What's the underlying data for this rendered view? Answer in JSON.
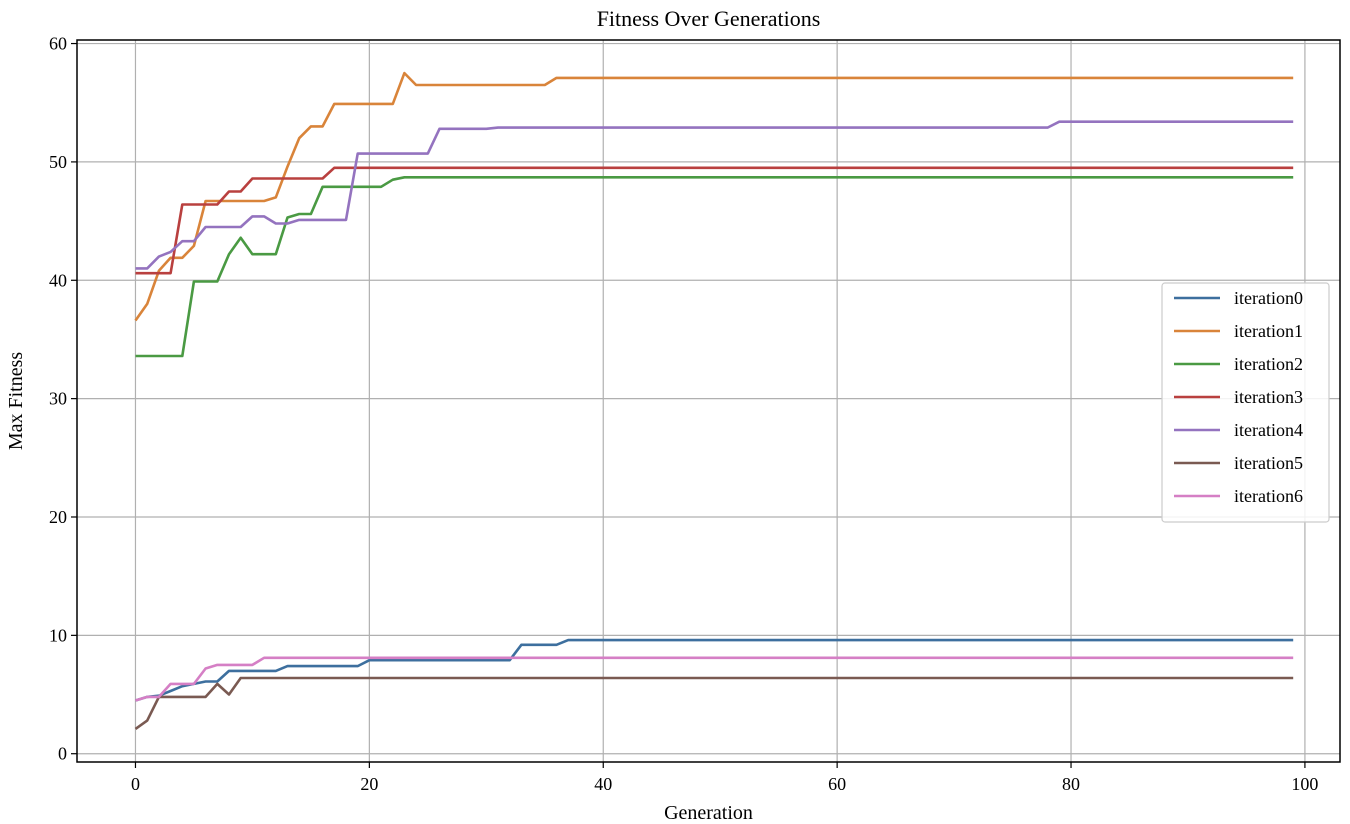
{
  "chart_data": {
    "type": "line",
    "title": "Fitness Over Generations",
    "xlabel": "Generation",
    "ylabel": "Max Fitness",
    "xlim": [
      -5,
      103
    ],
    "ylim": [
      -0.7,
      60.3
    ],
    "xticks": [
      0,
      20,
      40,
      60,
      80,
      100
    ],
    "yticks": [
      0,
      10,
      20,
      30,
      40,
      50,
      60
    ],
    "grid": true,
    "legend_position": "center-right",
    "series": [
      {
        "name": "iteration0",
        "color": "#3d6f9e",
        "points": [
          [
            0,
            4.5
          ],
          [
            1,
            4.8
          ],
          [
            2,
            4.9
          ],
          [
            3,
            5.3
          ],
          [
            4,
            5.7
          ],
          [
            5,
            5.9
          ],
          [
            6,
            6.1
          ],
          [
            7,
            6.1
          ],
          [
            8,
            7.0
          ],
          [
            9,
            7.0
          ],
          [
            10,
            7.0
          ],
          [
            11,
            7.0
          ],
          [
            12,
            7.0
          ],
          [
            13,
            7.4
          ],
          [
            14,
            7.4
          ],
          [
            15,
            7.4
          ],
          [
            16,
            7.4
          ],
          [
            17,
            7.4
          ],
          [
            18,
            7.4
          ],
          [
            19,
            7.4
          ],
          [
            20,
            7.9
          ],
          [
            21,
            7.9
          ],
          [
            32,
            7.9
          ],
          [
            33,
            9.2
          ],
          [
            36,
            9.2
          ],
          [
            37,
            9.6
          ],
          [
            99,
            9.6
          ]
        ]
      },
      {
        "name": "iteration1",
        "color": "#d9843a",
        "points": [
          [
            0,
            36.6
          ],
          [
            1,
            38.0
          ],
          [
            2,
            40.8
          ],
          [
            3,
            41.9
          ],
          [
            4,
            41.9
          ],
          [
            5,
            42.9
          ],
          [
            6,
            46.7
          ],
          [
            7,
            46.7
          ],
          [
            8,
            46.7
          ],
          [
            9,
            46.7
          ],
          [
            10,
            46.7
          ],
          [
            11,
            46.7
          ],
          [
            12,
            47.0
          ],
          [
            13,
            49.6
          ],
          [
            14,
            52.0
          ],
          [
            15,
            53.0
          ],
          [
            16,
            53.0
          ],
          [
            17,
            54.9
          ],
          [
            18,
            54.9
          ],
          [
            19,
            54.9
          ],
          [
            20,
            54.9
          ],
          [
            21,
            54.9
          ],
          [
            22,
            54.9
          ],
          [
            23,
            57.5
          ],
          [
            24,
            56.5
          ],
          [
            25,
            56.5
          ],
          [
            35,
            56.5
          ],
          [
            36,
            57.1
          ],
          [
            99,
            57.1
          ]
        ]
      },
      {
        "name": "iteration2",
        "color": "#4a9a43",
        "points": [
          [
            0,
            33.6
          ],
          [
            1,
            33.6
          ],
          [
            2,
            33.6
          ],
          [
            3,
            33.6
          ],
          [
            4,
            33.6
          ],
          [
            5,
            39.9
          ],
          [
            6,
            39.9
          ],
          [
            7,
            39.9
          ],
          [
            8,
            42.2
          ],
          [
            9,
            43.6
          ],
          [
            10,
            42.2
          ],
          [
            11,
            42.2
          ],
          [
            12,
            42.2
          ],
          [
            13,
            45.3
          ],
          [
            14,
            45.6
          ],
          [
            15,
            45.6
          ],
          [
            16,
            47.9
          ],
          [
            17,
            47.9
          ],
          [
            18,
            47.9
          ],
          [
            19,
            47.9
          ],
          [
            20,
            47.9
          ],
          [
            21,
            47.9
          ],
          [
            22,
            48.5
          ],
          [
            23,
            48.7
          ],
          [
            99,
            48.7
          ]
        ]
      },
      {
        "name": "iteration3",
        "color": "#b9403f",
        "points": [
          [
            0,
            40.6
          ],
          [
            1,
            40.6
          ],
          [
            2,
            40.6
          ],
          [
            3,
            40.6
          ],
          [
            4,
            46.4
          ],
          [
            5,
            46.4
          ],
          [
            6,
            46.4
          ],
          [
            7,
            46.4
          ],
          [
            8,
            47.5
          ],
          [
            9,
            47.5
          ],
          [
            10,
            48.6
          ],
          [
            11,
            48.6
          ],
          [
            12,
            48.6
          ],
          [
            13,
            48.6
          ],
          [
            14,
            48.6
          ],
          [
            15,
            48.6
          ],
          [
            16,
            48.6
          ],
          [
            17,
            49.5
          ],
          [
            99,
            49.5
          ]
        ]
      },
      {
        "name": "iteration4",
        "color": "#9473bf",
        "points": [
          [
            0,
            41.0
          ],
          [
            1,
            41.0
          ],
          [
            2,
            42.0
          ],
          [
            3,
            42.4
          ],
          [
            4,
            43.3
          ],
          [
            5,
            43.3
          ],
          [
            6,
            44.5
          ],
          [
            7,
            44.5
          ],
          [
            8,
            44.5
          ],
          [
            9,
            44.5
          ],
          [
            10,
            45.4
          ],
          [
            11,
            45.4
          ],
          [
            12,
            44.8
          ],
          [
            13,
            44.8
          ],
          [
            14,
            45.1
          ],
          [
            15,
            45.1
          ],
          [
            16,
            45.1
          ],
          [
            17,
            45.1
          ],
          [
            18,
            45.1
          ],
          [
            19,
            50.7
          ],
          [
            20,
            50.7
          ],
          [
            24,
            50.7
          ],
          [
            25,
            50.7
          ],
          [
            26,
            52.8
          ],
          [
            30,
            52.8
          ],
          [
            31,
            52.9
          ],
          [
            78,
            52.9
          ],
          [
            79,
            53.4
          ],
          [
            99,
            53.4
          ]
        ]
      },
      {
        "name": "iteration5",
        "color": "#7a5a52",
        "points": [
          [
            0,
            2.1
          ],
          [
            1,
            2.8
          ],
          [
            2,
            4.8
          ],
          [
            3,
            4.8
          ],
          [
            4,
            4.8
          ],
          [
            5,
            4.8
          ],
          [
            6,
            4.8
          ],
          [
            7,
            5.9
          ],
          [
            8,
            5.0
          ],
          [
            9,
            6.4
          ],
          [
            10,
            6.4
          ],
          [
            99,
            6.4
          ]
        ]
      },
      {
        "name": "iteration6",
        "color": "#d57fc5",
        "points": [
          [
            0,
            4.5
          ],
          [
            1,
            4.8
          ],
          [
            2,
            4.8
          ],
          [
            3,
            5.9
          ],
          [
            4,
            5.9
          ],
          [
            5,
            5.9
          ],
          [
            6,
            7.2
          ],
          [
            7,
            7.5
          ],
          [
            8,
            7.5
          ],
          [
            9,
            7.5
          ],
          [
            10,
            7.5
          ],
          [
            11,
            8.1
          ],
          [
            99,
            8.1
          ]
        ]
      }
    ]
  }
}
